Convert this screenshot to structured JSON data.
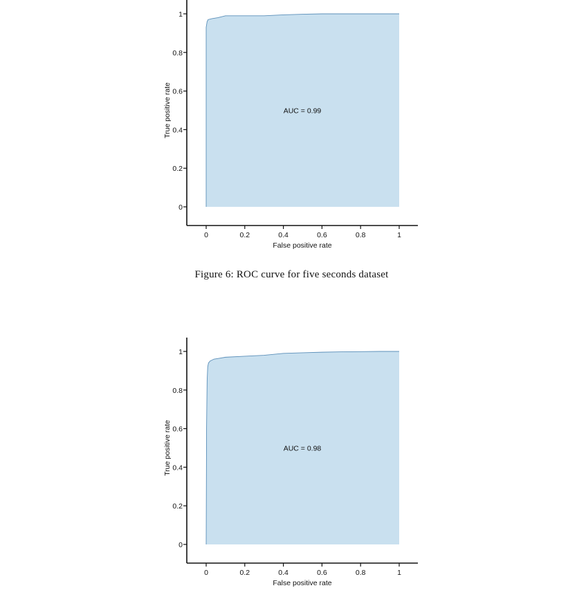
{
  "figure_caption": "Figure 6: ROC curve for five seconds dataset",
  "colors": {
    "area_fill": "#c9e0ef",
    "curve_stroke": "#5b8fb9",
    "axis": "#111111"
  },
  "chart_data": [
    {
      "type": "area",
      "xlabel": "False positive rate",
      "ylabel": "True positive rate",
      "annotation": "AUC = 0.99",
      "xlim": [
        -0.1,
        1.1
      ],
      "ylim": [
        -0.1,
        1.1
      ],
      "xticks": [
        "0",
        "0.2",
        "0.4",
        "0.6",
        "0.8",
        "1"
      ],
      "yticks": [
        "0",
        "0.2",
        "0.4",
        "0.6",
        "0.8",
        "1"
      ],
      "x": [
        0,
        0.0,
        0.0,
        0.005,
        0.01,
        0.03,
        0.06,
        0.1,
        0.2,
        0.3,
        0.4,
        0.5,
        0.6,
        0.7,
        0.8,
        0.9,
        1.0,
        1.0
      ],
      "y": [
        0,
        0.75,
        0.93,
        0.96,
        0.97,
        0.975,
        0.98,
        0.99,
        0.99,
        0.99,
        0.995,
        0.998,
        1.0,
        1.0,
        1.0,
        1.0,
        1.0,
        0
      ]
    },
    {
      "type": "area",
      "xlabel": "False positive rate",
      "ylabel": "True positive rate",
      "annotation": "AUC = 0.98",
      "xlim": [
        -0.1,
        1.1
      ],
      "ylim": [
        -0.1,
        1.1
      ],
      "xticks": [
        "0",
        "0.2",
        "0.4",
        "0.6",
        "0.8",
        "1"
      ],
      "yticks": [
        "0",
        "0.2",
        "0.4",
        "0.6",
        "0.8",
        "1"
      ],
      "x": [
        0,
        0.002,
        0.005,
        0.008,
        0.012,
        0.02,
        0.04,
        0.07,
        0.1,
        0.2,
        0.3,
        0.4,
        0.5,
        0.6,
        0.7,
        0.8,
        0.9,
        1.0,
        1.0
      ],
      "y": [
        0,
        0.6,
        0.85,
        0.92,
        0.94,
        0.95,
        0.96,
        0.965,
        0.97,
        0.975,
        0.98,
        0.99,
        0.993,
        0.996,
        0.998,
        0.999,
        1.0,
        1.0,
        0
      ]
    }
  ]
}
